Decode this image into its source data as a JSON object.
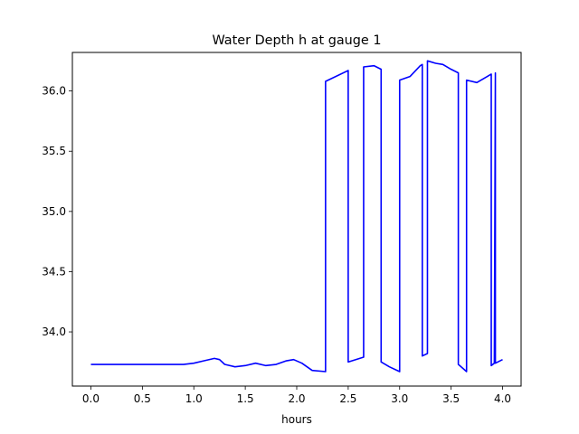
{
  "chart_data": {
    "type": "line",
    "title": "Water Depth h at gauge 1",
    "xlabel": "hours",
    "ylabel": "",
    "xlim": [
      -0.18,
      4.18
    ],
    "ylim": [
      33.55,
      36.32
    ],
    "grid": false,
    "xticks": [
      0.0,
      0.5,
      1.0,
      1.5,
      2.0,
      2.5,
      3.0,
      3.5,
      4.0
    ],
    "xtick_labels": [
      "0.0",
      "0.5",
      "1.0",
      "1.5",
      "2.0",
      "2.5",
      "3.0",
      "3.5",
      "4.0"
    ],
    "yticks": [
      34.0,
      34.5,
      35.0,
      35.5,
      36.0
    ],
    "ytick_labels": [
      "34.0",
      "34.5",
      "35.0",
      "35.5",
      "36.0"
    ],
    "series": [
      {
        "color": "#0000ff",
        "points": [
          [
            0.0,
            33.73
          ],
          [
            0.5,
            33.73
          ],
          [
            0.9,
            33.73
          ],
          [
            1.0,
            33.74
          ],
          [
            1.1,
            33.76
          ],
          [
            1.2,
            33.78
          ],
          [
            1.25,
            33.77
          ],
          [
            1.3,
            33.73
          ],
          [
            1.4,
            33.71
          ],
          [
            1.5,
            33.72
          ],
          [
            1.6,
            33.74
          ],
          [
            1.7,
            33.72
          ],
          [
            1.8,
            33.73
          ],
          [
            1.9,
            33.76
          ],
          [
            1.97,
            33.77
          ],
          [
            2.05,
            33.74
          ],
          [
            2.15,
            33.68
          ],
          [
            2.28,
            33.67
          ],
          [
            2.28,
            36.08
          ],
          [
            2.5,
            36.17
          ],
          [
            2.5,
            33.75
          ],
          [
            2.65,
            33.79
          ],
          [
            2.65,
            36.2
          ],
          [
            2.75,
            36.21
          ],
          [
            2.82,
            36.18
          ],
          [
            2.82,
            33.75
          ],
          [
            2.9,
            33.71
          ],
          [
            3.0,
            33.67
          ],
          [
            3.0,
            36.09
          ],
          [
            3.1,
            36.12
          ],
          [
            3.2,
            36.21
          ],
          [
            3.22,
            36.22
          ],
          [
            3.22,
            33.8
          ],
          [
            3.27,
            33.82
          ],
          [
            3.27,
            36.25
          ],
          [
            3.35,
            36.23
          ],
          [
            3.42,
            36.22
          ],
          [
            3.5,
            36.18
          ],
          [
            3.57,
            36.15
          ],
          [
            3.57,
            33.73
          ],
          [
            3.65,
            33.67
          ],
          [
            3.65,
            36.09
          ],
          [
            3.75,
            36.07
          ],
          [
            3.85,
            36.12
          ],
          [
            3.89,
            36.14
          ],
          [
            3.89,
            33.72
          ],
          [
            3.92,
            33.74
          ],
          [
            3.93,
            36.15
          ],
          [
            3.93,
            33.74
          ],
          [
            4.0,
            33.77
          ]
        ]
      }
    ]
  }
}
